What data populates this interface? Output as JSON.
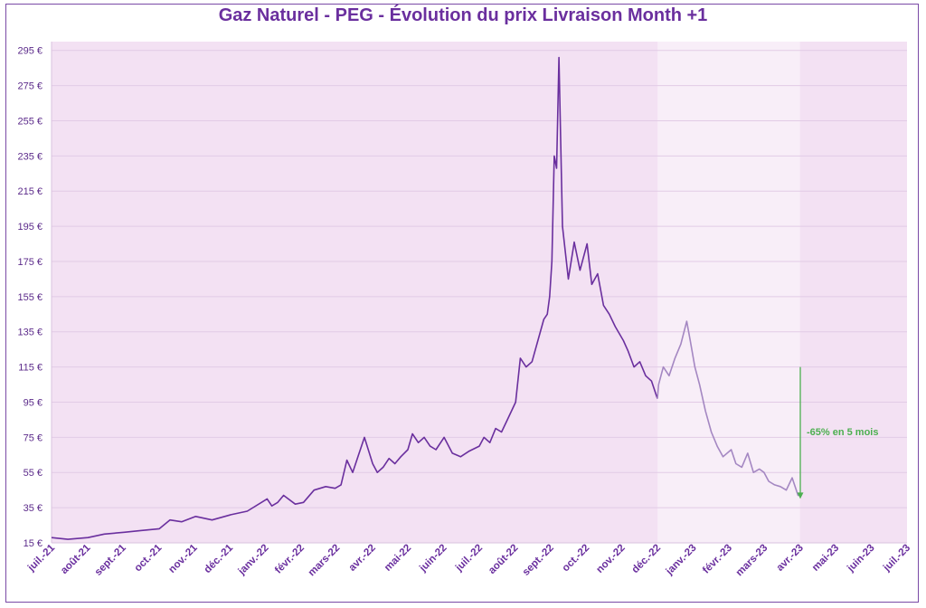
{
  "chart_data": {
    "type": "line",
    "title": "Gaz Naturel - PEG - Évolution du prix Livraison Month +1",
    "ylim": [
      15,
      300
    ],
    "yticks": [
      "15 €",
      "35 €",
      "55 €",
      "75 €",
      "95 €",
      "115 €",
      "135 €",
      "155 €",
      "175 €",
      "195 €",
      "215 €",
      "235 €",
      "255 €",
      "275 €",
      "295 €"
    ],
    "ytick_values": [
      15,
      35,
      55,
      75,
      95,
      115,
      135,
      155,
      175,
      195,
      215,
      235,
      255,
      275,
      295
    ],
    "xticks": [
      "juil.-21",
      "août-21",
      "sept.-21",
      "oct.-21",
      "nov.-21",
      "déc.-21",
      "janv.-22",
      "févr.-22",
      "mars-22",
      "avr.-22",
      "mai-22",
      "juin-22",
      "juil.-22",
      "août-22",
      "sept.-22",
      "oct.-22",
      "nov.-22",
      "déc.-22",
      "janv.-23",
      "févr.-23",
      "mars-23",
      "avr.-23",
      "mai-23",
      "juin-23",
      "juil.-23"
    ],
    "grid": true,
    "highlight_period": [
      "déc.-22",
      "avr.-23"
    ],
    "series": [
      {
        "x": [
          "2021-07-01",
          "2021-07-15",
          "2021-08-01",
          "2021-08-15",
          "2021-09-01",
          "2021-09-15",
          "2021-10-01",
          "2021-10-10",
          "2021-10-20",
          "2021-11-01",
          "2021-11-15",
          "2021-12-01",
          "2021-12-15",
          "2022-01-01",
          "2022-01-05",
          "2022-01-10",
          "2022-01-15",
          "2022-01-25",
          "2022-02-01",
          "2022-02-10",
          "2022-02-20",
          "2022-02-28",
          "2022-03-05",
          "2022-03-10",
          "2022-03-15",
          "2022-03-20",
          "2022-03-25",
          "2022-04-01",
          "2022-04-05",
          "2022-04-10",
          "2022-04-15",
          "2022-04-20",
          "2022-04-25",
          "2022-05-01",
          "2022-05-05",
          "2022-05-10",
          "2022-05-15",
          "2022-05-20",
          "2022-05-25",
          "2022-06-01",
          "2022-06-08",
          "2022-06-15",
          "2022-06-22",
          "2022-07-01",
          "2022-07-05",
          "2022-07-10",
          "2022-07-15",
          "2022-07-20",
          "2022-07-25",
          "2022-08-01",
          "2022-08-05",
          "2022-08-10",
          "2022-08-15",
          "2022-08-20",
          "2022-08-25",
          "2022-08-28",
          "2022-08-30",
          "2022-09-01",
          "2022-09-03",
          "2022-09-05",
          "2022-09-07",
          "2022-09-10",
          "2022-09-15",
          "2022-09-20",
          "2022-09-25",
          "2022-10-01",
          "2022-10-05",
          "2022-10-10",
          "2022-10-15",
          "2022-10-20",
          "2022-10-25",
          "2022-11-01",
          "2022-11-05",
          "2022-11-10",
          "2022-11-15",
          "2022-11-20",
          "2022-11-25",
          "2022-11-30"
        ],
        "values": [
          18,
          17,
          18,
          20,
          21,
          22,
          23,
          28,
          27,
          30,
          28,
          31,
          33,
          40,
          36,
          38,
          42,
          37,
          38,
          45,
          47,
          46,
          48,
          62,
          55,
          65,
          75,
          60,
          55,
          58,
          63,
          60,
          64,
          68,
          77,
          72,
          75,
          70,
          68,
          75,
          66,
          64,
          67,
          70,
          75,
          72,
          80,
          78,
          85,
          95,
          120,
          115,
          118,
          130,
          142,
          145,
          155,
          175,
          235,
          228,
          291,
          195,
          165,
          186,
          170,
          185,
          162,
          168,
          150,
          145,
          138,
          130,
          124,
          115,
          118,
          110,
          107,
          97
        ]
      },
      {
        "x": [
          "2022-12-01",
          "2022-12-05",
          "2022-12-10",
          "2022-12-15",
          "2022-12-20",
          "2022-12-25",
          "2022-12-28",
          "2023-01-01",
          "2023-01-05",
          "2023-01-10",
          "2023-01-15",
          "2023-01-20",
          "2023-01-25",
          "2023-02-01",
          "2023-02-05",
          "2023-02-10",
          "2023-02-15",
          "2023-02-20",
          "2023-02-25",
          "2023-03-01",
          "2023-03-05",
          "2023-03-10",
          "2023-03-15",
          "2023-03-20",
          "2023-03-25",
          "2023-03-30",
          "2023-04-01"
        ],
        "values": [
          105,
          115,
          110,
          120,
          128,
          141,
          130,
          115,
          105,
          90,
          78,
          70,
          64,
          68,
          60,
          58,
          66,
          55,
          57,
          55,
          50,
          48,
          47,
          45,
          52,
          42,
          43
        ]
      }
    ],
    "annotation": {
      "label": "-65% en 5 mois",
      "from_value": 115,
      "to_value": 40
    }
  }
}
